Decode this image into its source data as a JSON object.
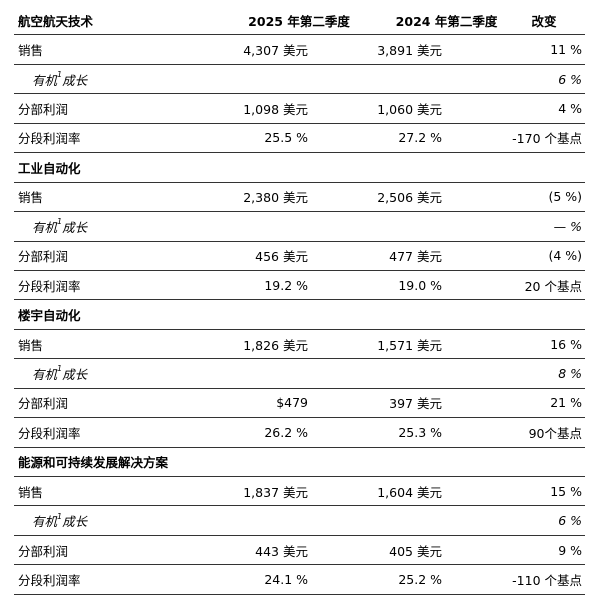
{
  "header": {
    "segment": "航空航天技术",
    "col1": "2025 年第二季度",
    "col2": "2024 年第二季度",
    "col3": "改变"
  },
  "sections": [
    {
      "rows": [
        {
          "label": "销售",
          "v1": "4,307 美元",
          "v2": "3,891 美元",
          "v3": "11 %"
        },
        {
          "label_pre": "有机",
          "label_sup": "1",
          "label_post": "成长",
          "v1": "",
          "v2": "",
          "v3": "6 %"
        },
        {
          "label": "分部利润",
          "v1": "1,098 美元",
          "v2": "1,060 美元",
          "v3": "4 %"
        },
        {
          "label": "分段利润率",
          "v1": "25.5 %",
          "v2": "27.2 %",
          "v3": "-170 个基点"
        }
      ]
    },
    {
      "title": "工业自动化",
      "rows": [
        {
          "label": "销售",
          "v1": "2,380 美元",
          "v2": "2,506 美元",
          "v3": "(5 %)"
        },
        {
          "label_pre": "有机",
          "label_sup": "1",
          "label_post": "成长",
          "v1": "",
          "v2": "",
          "v3": "— %"
        },
        {
          "label": "分部利润",
          "v1": "456 美元",
          "v2": "477 美元",
          "v3": "(4 %)"
        },
        {
          "label": "分段利润率",
          "v1": "19.2 %",
          "v2": "19.0 %",
          "v3": "20 个基点"
        }
      ]
    },
    {
      "title": "楼宇自动化",
      "rows": [
        {
          "label": "销售",
          "v1": "1,826 美元",
          "v2": "1,571 美元",
          "v3": "16 %"
        },
        {
          "label_pre": "有机",
          "label_sup": "1",
          "label_post": "成长",
          "v1": "",
          "v2": "",
          "v3": "8 %"
        },
        {
          "label": "分部利润",
          "v1": "$479",
          "v2": "397 美元",
          "v3": "21 %"
        },
        {
          "label": "分段利润率",
          "v1": "26.2 %",
          "v2": "25.3 %",
          "v3": "90个基点"
        }
      ]
    },
    {
      "title": "能源和可持续发展解决方案",
      "rows": [
        {
          "label": "销售",
          "v1": "1,837 美元",
          "v2": "1,604 美元",
          "v3": "15 %"
        },
        {
          "label_pre": "有机",
          "label_sup": "1",
          "label_post": "成长",
          "v1": "",
          "v2": "",
          "v3": "6 %"
        },
        {
          "label": "分部利润",
          "v1": "443 美元",
          "v2": "405 美元",
          "v3": "9 %"
        },
        {
          "label": "分段利润率",
          "v1": "24.1 %",
          "v2": "25.2 %",
          "v3": "-110 个基点"
        }
      ]
    }
  ]
}
